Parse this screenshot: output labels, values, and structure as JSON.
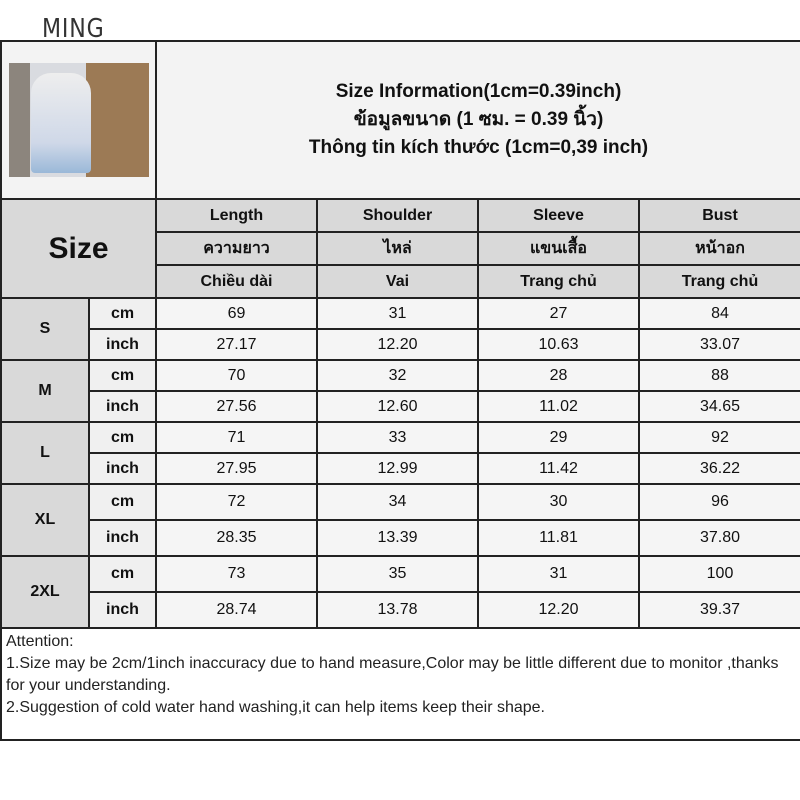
{
  "brand": "MING",
  "header": {
    "title_en": "Size Information(1cm=0.39inch)",
    "title_th": "ข้อมูลขนาด (1 ซม. = 0.39 นิ้ว)",
    "title_vi": "Thông tin kích thước (1cm=0,39 inch)"
  },
  "size_label": "Size",
  "columns": [
    {
      "en": "Length",
      "th": "ความยาว",
      "vi": "Chiều dài"
    },
    {
      "en": "Shoulder",
      "th": "ไหล่",
      "vi": "Vai"
    },
    {
      "en": "Sleeve",
      "th": "แขนเสื้อ",
      "vi": "Trang chủ"
    },
    {
      "en": "Bust",
      "th": "หน้าอก",
      "vi": "Trang chủ"
    }
  ],
  "sizes": [
    {
      "name": "S",
      "cm_label": "cm",
      "inch_label": "inch",
      "cm": [
        "69",
        "31",
        "27",
        "84"
      ],
      "inch": [
        "27.17",
        "12.20",
        "10.63",
        "33.07"
      ]
    },
    {
      "name": "M",
      "cm_label": "cm",
      "inch_label": "inch",
      "cm": [
        "70",
        "32",
        "28",
        "88"
      ],
      "inch": [
        "27.56",
        "12.60",
        "11.02",
        "34.65"
      ]
    },
    {
      "name": "L",
      "cm_label": "cm",
      "inch_label": "inch",
      "cm": [
        "71",
        "33",
        "29",
        "92"
      ],
      "inch": [
        "27.95",
        "12.99",
        "11.42",
        "36.22"
      ]
    },
    {
      "name": "XL",
      "cm_label": "cm",
      "inch_label": "inch",
      "cm": [
        "72",
        "34",
        "30",
        "96"
      ],
      "inch": [
        "28.35",
        "13.39",
        "11.81",
        "37.80"
      ]
    },
    {
      "name": "2XL",
      "cm_label": "cm",
      "inch_label": "inch",
      "cm": [
        "73",
        "35",
        "31",
        "100"
      ],
      "inch": [
        "28.74",
        "13.78",
        "12.20",
        "39.37"
      ]
    }
  ],
  "attention": {
    "heading": "Attention:",
    "line1": "1.Size may be 2cm/1inch inaccuracy due to hand measure,Color may be little different due to monitor ,thanks for your understanding.",
    "line2": "2.Suggestion of cold water hand washing,it can help items keep their shape."
  }
}
